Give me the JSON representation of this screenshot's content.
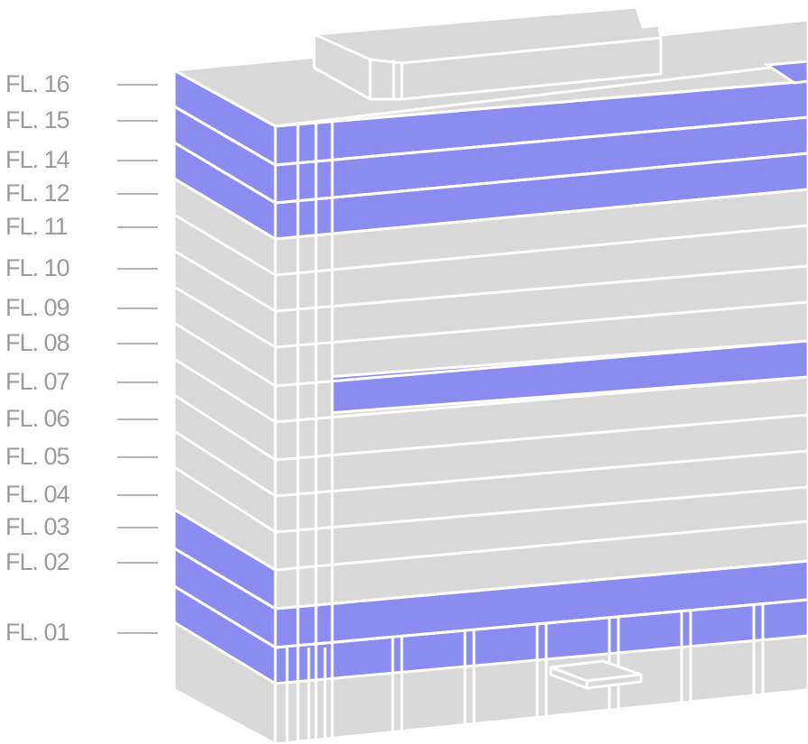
{
  "colors": {
    "background": "#ffffff",
    "building": "#d9d9d9",
    "outline": "#ffffff",
    "highlight": "#8a8cf0",
    "label": "#9b9b9b"
  },
  "floors": [
    {
      "id": "fl-16",
      "label": "FL. 16",
      "highlighted": true
    },
    {
      "id": "fl-15",
      "label": "FL. 15",
      "highlighted": true
    },
    {
      "id": "fl-14",
      "label": "FL. 14",
      "highlighted": true
    },
    {
      "id": "fl-12",
      "label": "FL. 12",
      "highlighted": false
    },
    {
      "id": "fl-11",
      "label": "FL. 11",
      "highlighted": false
    },
    {
      "id": "fl-10",
      "label": "FL. 10",
      "highlighted": false
    },
    {
      "id": "fl-09",
      "label": "FL. 09",
      "highlighted": false
    },
    {
      "id": "fl-08",
      "label": "FL. 08",
      "highlighted": true
    },
    {
      "id": "fl-07",
      "label": "FL. 07",
      "highlighted": false
    },
    {
      "id": "fl-06",
      "label": "FL. 06",
      "highlighted": false
    },
    {
      "id": "fl-05",
      "label": "FL. 05",
      "highlighted": false
    },
    {
      "id": "fl-04",
      "label": "FL. 04",
      "highlighted": false
    },
    {
      "id": "fl-03",
      "label": "FL. 03",
      "highlighted": true
    },
    {
      "id": "fl-02",
      "label": "FL. 02",
      "highlighted": true
    },
    {
      "id": "fl-01",
      "label": "FL. 01",
      "highlighted": true
    }
  ]
}
